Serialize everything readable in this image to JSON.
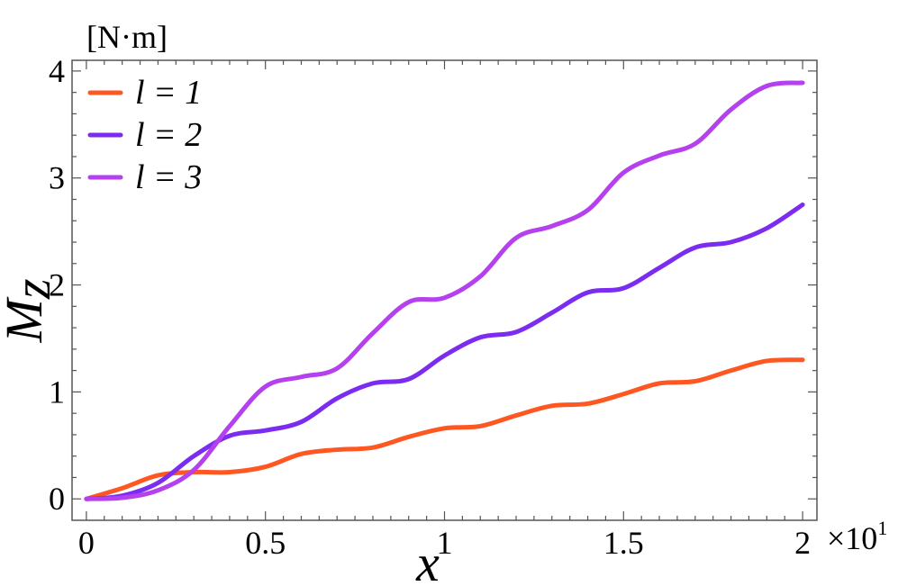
{
  "chart_data": {
    "type": "line",
    "title": "",
    "xlabel": "x",
    "ylabel_main": "M",
    "ylabel_sub": "z",
    "y_unit": "[N·m]",
    "x_multiplier_base": "×10",
    "x_multiplier_exp": "1",
    "xlim": [
      -0.04,
      2.04
    ],
    "ylim": [
      -0.2,
      4.1
    ],
    "x_ticks": [
      0,
      0.5,
      1,
      1.5,
      2
    ],
    "x_tick_labels": [
      "0",
      "0.5",
      "1",
      "1.5",
      "2"
    ],
    "y_ticks": [
      0,
      1,
      2,
      3,
      4
    ],
    "y_tick_labels": [
      "0",
      "1",
      "2",
      "3",
      "4"
    ],
    "grid": false,
    "legend_position": "top-left",
    "series": [
      {
        "name": "l = 1",
        "color": "#ff5722",
        "x": [
          0,
          0.1,
          0.2,
          0.3,
          0.4,
          0.5,
          0.6,
          0.7,
          0.8,
          0.9,
          1.0,
          1.1,
          1.2,
          1.3,
          1.4,
          1.5,
          1.6,
          1.7,
          1.8,
          1.9,
          2.0
        ],
        "y": [
          0,
          0.1,
          0.22,
          0.25,
          0.25,
          0.3,
          0.42,
          0.46,
          0.48,
          0.58,
          0.66,
          0.68,
          0.78,
          0.87,
          0.89,
          0.98,
          1.08,
          1.1,
          1.2,
          1.29,
          1.3
        ]
      },
      {
        "name": "l = 2",
        "color": "#7b2cf0",
        "x": [
          0,
          0.1,
          0.2,
          0.3,
          0.4,
          0.5,
          0.6,
          0.7,
          0.8,
          0.9,
          1.0,
          1.1,
          1.2,
          1.3,
          1.4,
          1.5,
          1.6,
          1.7,
          1.8,
          1.9,
          2.0
        ],
        "y": [
          0,
          0.03,
          0.15,
          0.4,
          0.59,
          0.64,
          0.72,
          0.94,
          1.08,
          1.12,
          1.34,
          1.51,
          1.56,
          1.74,
          1.93,
          1.97,
          2.16,
          2.35,
          2.4,
          2.53,
          2.75
        ]
      },
      {
        "name": "l = 3",
        "color": "#b540ee",
        "x": [
          0,
          0.1,
          0.2,
          0.3,
          0.4,
          0.5,
          0.6,
          0.7,
          0.8,
          0.9,
          1.0,
          1.1,
          1.2,
          1.3,
          1.4,
          1.5,
          1.6,
          1.7,
          1.8,
          1.9,
          2.0
        ],
        "y": [
          0,
          0.01,
          0.08,
          0.27,
          0.68,
          1.05,
          1.14,
          1.22,
          1.55,
          1.84,
          1.88,
          2.08,
          2.44,
          2.55,
          2.7,
          3.05,
          3.21,
          3.32,
          3.64,
          3.86,
          3.89
        ]
      }
    ]
  }
}
